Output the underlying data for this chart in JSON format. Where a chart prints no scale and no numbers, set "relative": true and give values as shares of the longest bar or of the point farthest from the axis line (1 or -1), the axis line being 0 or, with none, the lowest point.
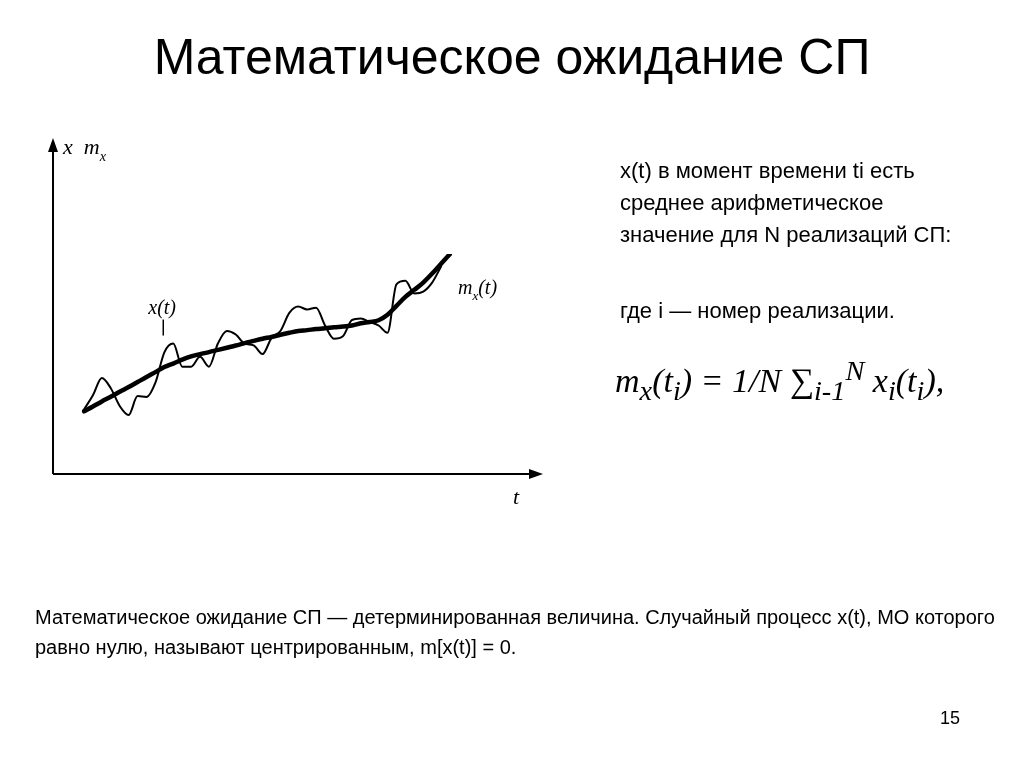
{
  "chart_data": {
    "type": "line",
    "title": "Математическое ожидание СП",
    "xlabel": "t",
    "ylabel": "x  m$_{x}$",
    "relative": true,
    "marker": "none",
    "legend": false,
    "categories": [
      null,
      null,
      null,
      null,
      null,
      null,
      null,
      null,
      null,
      null,
      null,
      null,
      null,
      null,
      null,
      null,
      null,
      null,
      null,
      null,
      null,
      null,
      null,
      null,
      null,
      null,
      null,
      null,
      null,
      null,
      null,
      null,
      null,
      null,
      null,
      null,
      null,
      null,
      null,
      null,
      null,
      null
    ],
    "series": [
      {
        "name": "x(t)",
        "color": "#000000",
        "values": [
          0.293,
          0.358,
          0.436,
          0.39,
          0.309,
          0.268,
          0.354,
          0.35,
          0.415,
          0.553,
          0.593,
          0.488,
          0.488,
          0.533,
          0.488,
          0.593,
          0.65,
          0.634,
          0.593,
          0.585,
          0.545,
          0.618,
          0.65,
          0.732,
          0.761,
          0.748,
          0.756,
          0.675,
          0.615,
          0.626,
          0.699,
          0.707,
          0.691,
          0.675,
          0.642,
          0.862,
          0.878,
          0.821,
          0.829,
          0.87,
          0.943,
          null
        ]
      },
      {
        "name": "m$_{x}$(t)",
        "color": "#000000",
        "values": [
          0.285,
          0.307,
          0.33,
          0.351,
          0.374,
          0.395,
          0.418,
          0.441,
          0.463,
          0.486,
          0.502,
          0.52,
          0.535,
          0.545,
          0.554,
          0.564,
          0.574,
          0.584,
          0.595,
          0.605,
          0.615,
          0.623,
          0.633,
          0.642,
          0.65,
          0.654,
          0.659,
          0.662,
          0.667,
          0.67,
          0.675,
          0.685,
          0.691,
          0.699,
          0.724,
          0.764,
          0.805,
          0.837,
          0.87,
          0.911,
          0.956,
          1
        ]
      }
    ],
    "annotations": [
      "x(t) в момент времени ti есть среднее арифметическое значение для N реализаций СП:",
      "где i — номер реализации.",
      "m$_{x}$(t$_{i}$) = 1/N ∑$_{i-1}$$^{N}$ x$_{i}$(t$_{i}$),",
      "Математическое ожидание СП — детерминированная величина. Случайный процесс x(t), МО которого равно нулю, называют центрированным, m[x(t)] = 0.",
      "15"
    ]
  }
}
